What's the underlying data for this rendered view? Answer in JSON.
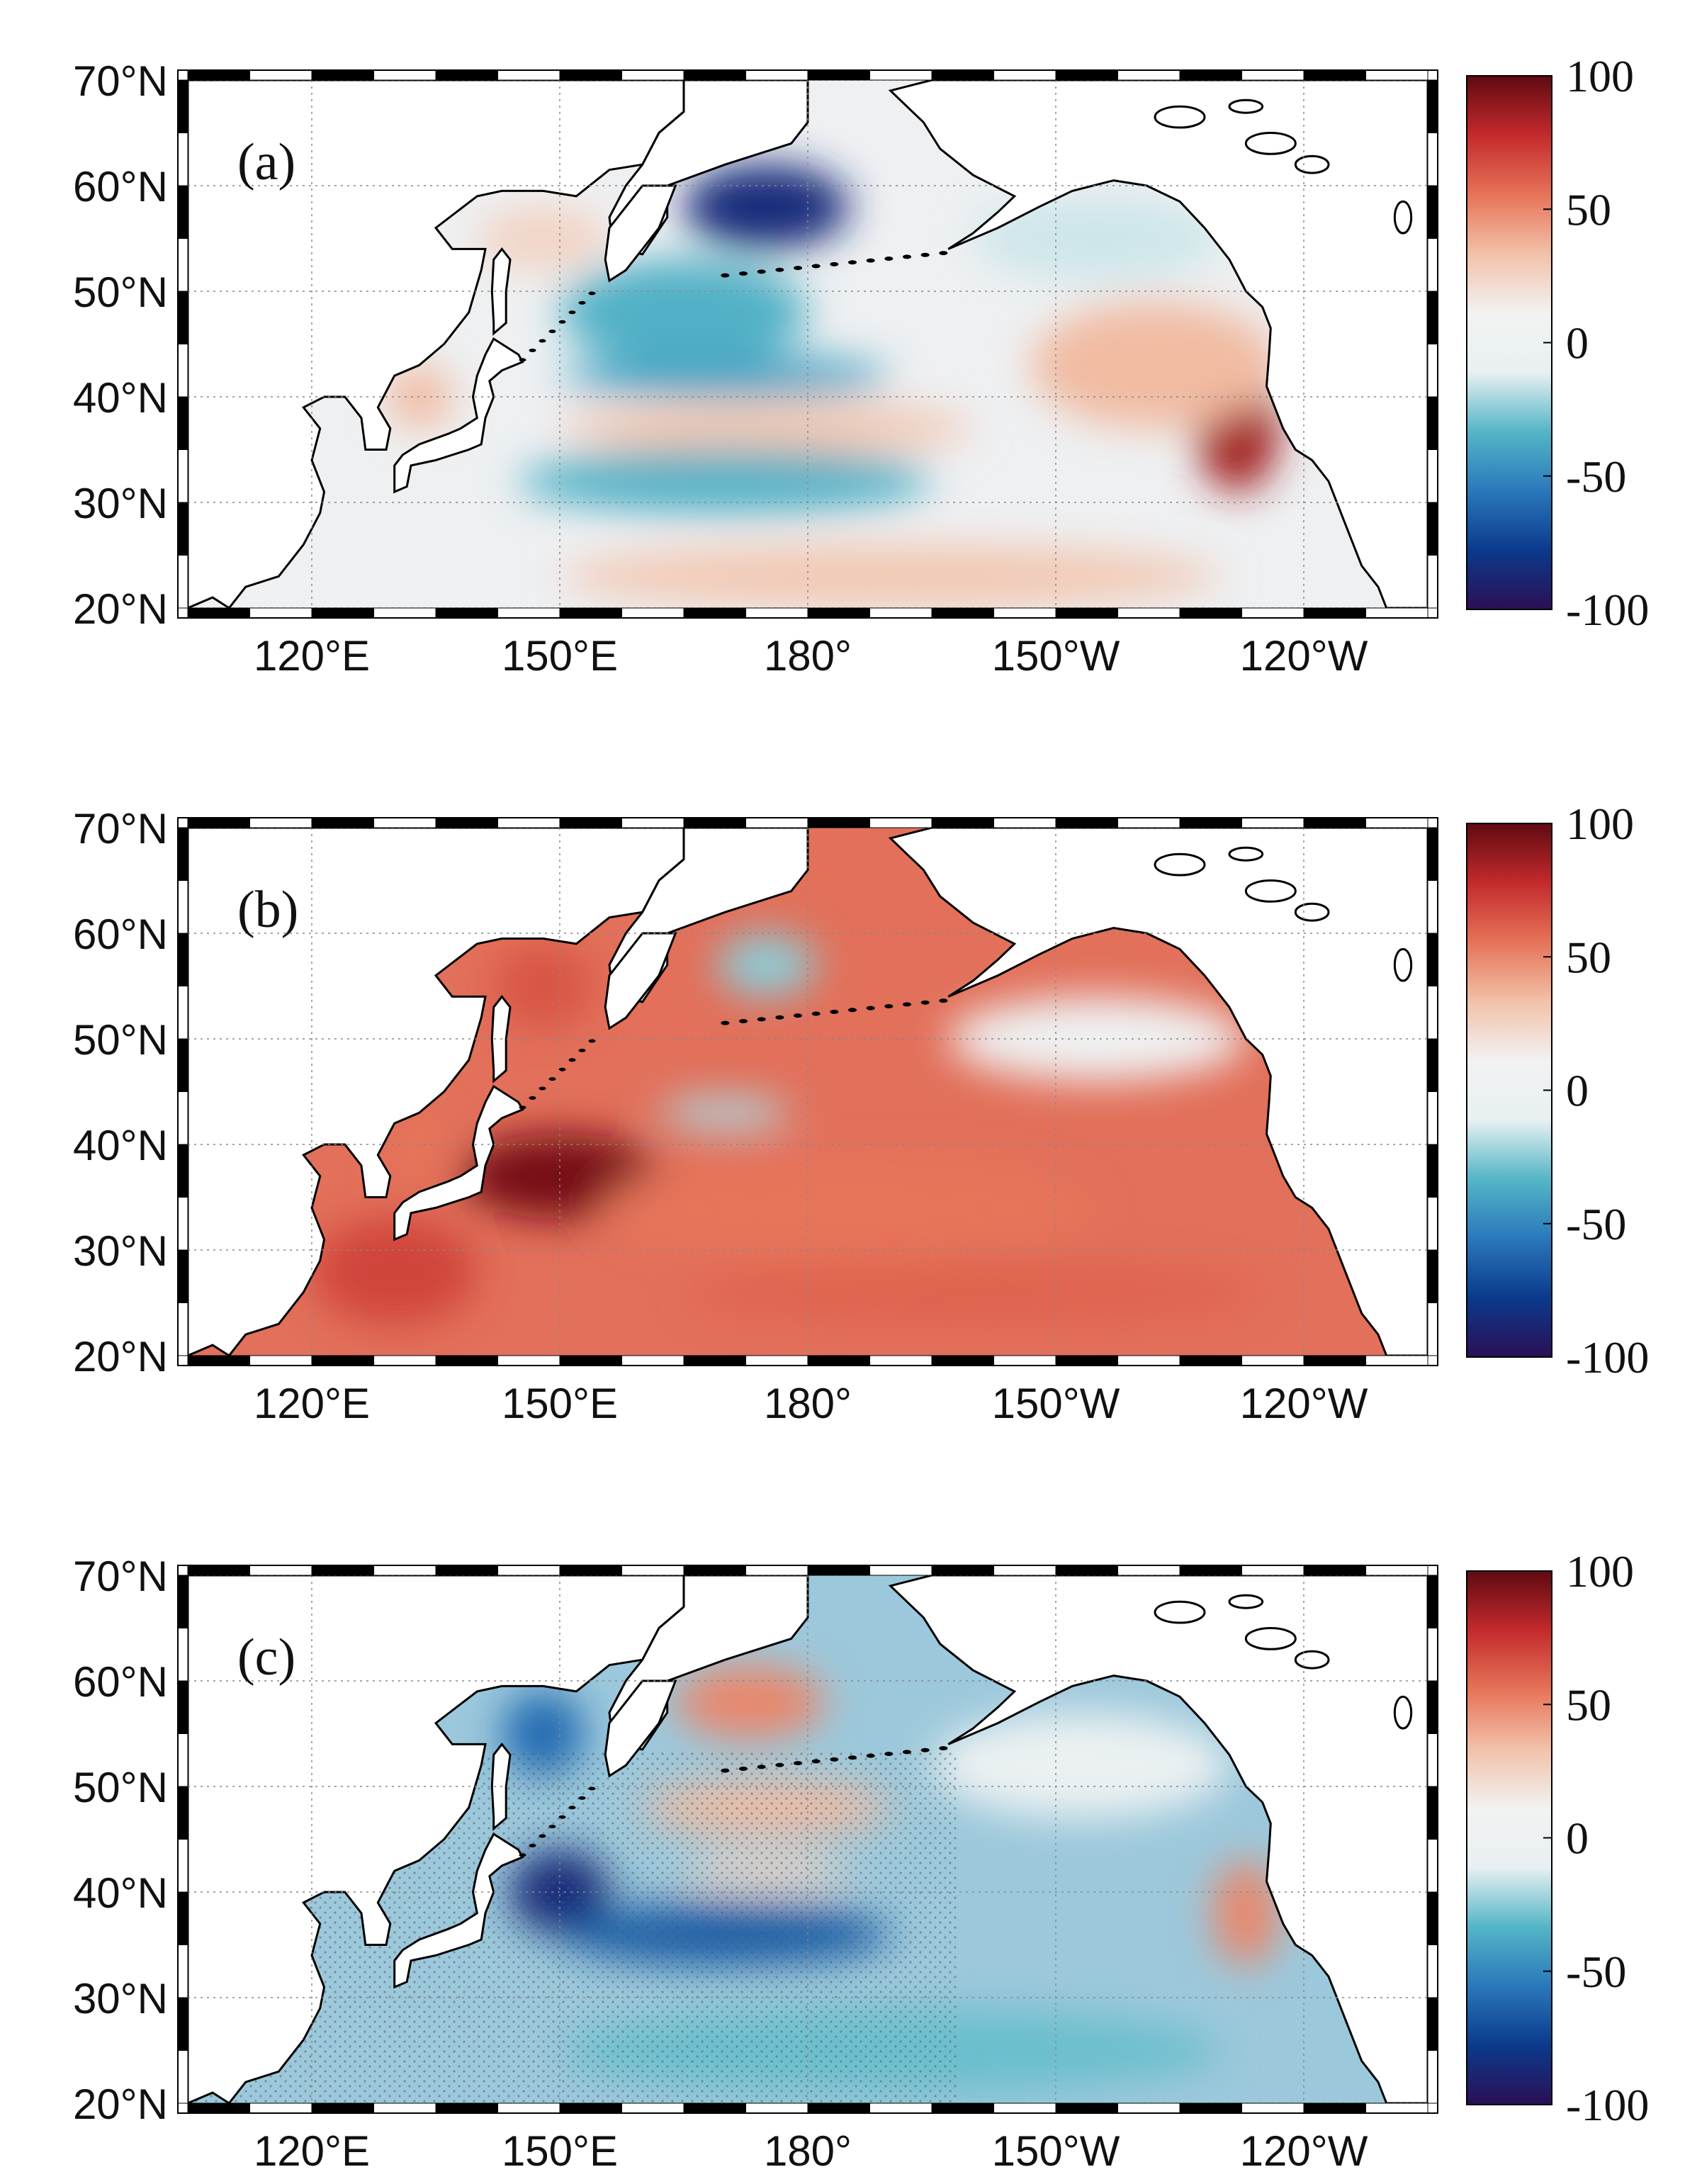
{
  "figure": {
    "colormap": {
      "stops": [
        "#2b0f55",
        "#0b3a8c",
        "#2a78bb",
        "#54b6c7",
        "#e8f0f2",
        "#f2f2f2",
        "#f2c1a8",
        "#e67358",
        "#c42a2c",
        "#5f0a12"
      ],
      "range": [
        -100,
        100
      ],
      "tick_labels": [
        "100",
        "50",
        "0",
        "-50",
        "-100"
      ]
    },
    "colors": {
      "land": "#ffffff",
      "coast": "#000000",
      "grid": "#888888",
      "warm": "#e2705a",
      "warm_strong": "#b3202a",
      "warm_deep": "#6b0c16",
      "cool": "#9cc8db",
      "cool_strong": "#2d78bb",
      "cool_deep": "#143f8f",
      "neutral": "#eef0f2"
    },
    "axes": {
      "lat_labels": [
        "70°N",
        "60°N",
        "50°N",
        "40°N",
        "30°N",
        "20°N"
      ],
      "lon_labels": [
        "120°E",
        "150°E",
        "180°",
        "150°W",
        "120°W"
      ],
      "lat_values": [
        70,
        60,
        50,
        40,
        30,
        20
      ],
      "lon_values": [
        120,
        150,
        180,
        210,
        240
      ],
      "lon_range": [
        105,
        255
      ],
      "lat_range": [
        20,
        70
      ]
    },
    "panels": [
      {
        "label": "(a)",
        "background": "neutral",
        "stippled": false,
        "anomalies": [
          {
            "name": "bering-sea-cold",
            "lon": 175,
            "lat": 58,
            "rx": 10,
            "ry": 4,
            "value": -85
          },
          {
            "name": "okhotsk-warm",
            "lon": 148,
            "lat": 55,
            "rx": 8,
            "ry": 3,
            "value": 25
          },
          {
            "name": "north-pacific-cool",
            "lon": 165,
            "lat": 48,
            "rx": 15,
            "ry": 5,
            "value": -35
          },
          {
            "name": "kuroshio-cool",
            "lon": 170,
            "lat": 42,
            "rx": 20,
            "ry": 2,
            "value": -40
          },
          {
            "name": "mid-lat-warm",
            "lon": 175,
            "lat": 37,
            "rx": 25,
            "ry": 2.5,
            "value": 30
          },
          {
            "name": "subtropic-cool",
            "lon": 170,
            "lat": 32,
            "rx": 25,
            "ry": 3,
            "value": -35
          },
          {
            "name": "tropic-warm",
            "lon": 190,
            "lat": 23,
            "rx": 40,
            "ry": 3,
            "value": 30
          },
          {
            "name": "california-warm",
            "lon": 232,
            "lat": 37,
            "rx": 5,
            "ry": 6,
            "value": 85
          },
          {
            "name": "ne-pacific-warm",
            "lon": 222,
            "lat": 43,
            "rx": 15,
            "ry": 6,
            "value": 35
          },
          {
            "name": "gulf-alaska-cool",
            "lon": 215,
            "lat": 55,
            "rx": 15,
            "ry": 4,
            "value": -15
          },
          {
            "name": "japan-sea-warm",
            "lon": 133,
            "lat": 40,
            "rx": 4,
            "ry": 3,
            "value": 35
          }
        ]
      },
      {
        "label": "(b)",
        "background": "warm",
        "stippled": false,
        "anomalies": [
          {
            "name": "kuroshio-hot",
            "lon": 150,
            "lat": 37,
            "rx": 12,
            "ry": 4,
            "value": 95
          },
          {
            "name": "okhotsk-hot",
            "lon": 148,
            "lat": 55,
            "rx": 6,
            "ry": 4,
            "value": 65
          },
          {
            "name": "bering-cool",
            "lon": 175,
            "lat": 57,
            "rx": 6,
            "ry": 3,
            "value": -25
          },
          {
            "name": "west-pacific-warm",
            "lon": 130,
            "lat": 28,
            "rx": 10,
            "ry": 5,
            "value": 70
          },
          {
            "name": "central-warm",
            "lon": 185,
            "lat": 34,
            "rx": 30,
            "ry": 5,
            "value": 55
          },
          {
            "name": "central-cool-patch",
            "lon": 170,
            "lat": 43,
            "rx": 8,
            "ry": 1.5,
            "value": -20
          },
          {
            "name": "ne-neutral",
            "lon": 215,
            "lat": 50,
            "rx": 18,
            "ry": 4,
            "value": 5
          },
          {
            "name": "tropic-warm",
            "lon": 200,
            "lat": 26,
            "rx": 35,
            "ry": 3,
            "value": 60
          },
          {
            "name": "japan-sea-warm",
            "lon": 133,
            "lat": 40,
            "rx": 4,
            "ry": 3,
            "value": 55
          }
        ]
      },
      {
        "label": "(c)",
        "background": "cool",
        "stippled": true,
        "anomalies": [
          {
            "name": "bering-warm",
            "lon": 173,
            "lat": 58,
            "rx": 9,
            "ry": 3.5,
            "value": 50
          },
          {
            "name": "kuroshio-cold",
            "lon": 150,
            "lat": 40,
            "rx": 6,
            "ry": 4,
            "value": -85
          },
          {
            "name": "okhotsk-cold",
            "lon": 148,
            "lat": 55,
            "rx": 5,
            "ry": 4,
            "value": -60
          },
          {
            "name": "central-cold",
            "lon": 170,
            "lat": 36,
            "rx": 20,
            "ry": 3,
            "value": -65
          },
          {
            "name": "mid-warm",
            "lon": 175,
            "lat": 48,
            "rx": 15,
            "ry": 2.5,
            "value": 35
          },
          {
            "name": "mid-warm-strip",
            "lon": 175,
            "lat": 42,
            "rx": 10,
            "ry": 1.5,
            "value": 25
          },
          {
            "name": "california-warm",
            "lon": 233,
            "lat": 38,
            "rx": 4,
            "ry": 5,
            "value": 50
          },
          {
            "name": "gulf-alaska-neutral",
            "lon": 213,
            "lat": 52,
            "rx": 18,
            "ry": 5,
            "value": -5
          },
          {
            "name": "tropic-cool",
            "lon": 190,
            "lat": 25,
            "rx": 40,
            "ry": 4,
            "value": -30
          }
        ]
      }
    ]
  }
}
